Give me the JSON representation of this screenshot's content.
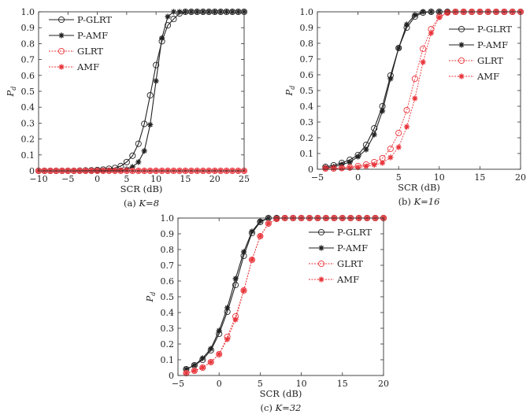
{
  "chart_data": [
    {
      "type": "line",
      "caption": "(a) K=8",
      "caption_prefix": "(a)",
      "caption_k": "K=8",
      "xlabel": "SCR (dB)",
      "ylabel": "P_d",
      "xlim": [
        -10,
        25
      ],
      "ylim": [
        0,
        1
      ],
      "xticks": [
        -10,
        -5,
        0,
        5,
        10,
        15,
        20,
        25
      ],
      "yticks": [
        0,
        0.1,
        0.2,
        0.3,
        0.4,
        0.5,
        0.6,
        0.7,
        0.8,
        0.9,
        1.0
      ],
      "ytick_labels": [
        "0",
        "0.1",
        "0.2",
        "0.3",
        "0.4",
        "0.5",
        "0.6",
        "0.7",
        "0.8",
        "0.9",
        "1.0"
      ],
      "legend": "top-left",
      "x": [
        -10,
        -9,
        -8,
        -7,
        -6,
        -5,
        -4,
        -3,
        -2,
        -1,
        0,
        1,
        2,
        3,
        4,
        5,
        6,
        7,
        8,
        9,
        10,
        11,
        12,
        13,
        14,
        15,
        16,
        17,
        18,
        19,
        20,
        21,
        22,
        23,
        24,
        25
      ],
      "series": [
        {
          "name": "P-GLRT",
          "color": "#222222",
          "marker": "circle",
          "dash": false,
          "values": [
            0,
            0,
            0,
            0,
            0,
            0,
            0,
            0.001,
            0.002,
            0.003,
            0.005,
            0.008,
            0.013,
            0.018,
            0.03,
            0.055,
            0.095,
            0.17,
            0.295,
            0.475,
            0.665,
            0.815,
            0.915,
            0.955,
            0.99,
            1,
            1,
            1,
            1,
            1,
            1,
            1,
            1,
            1,
            1,
            1
          ]
        },
        {
          "name": "P-AMF",
          "color": "#222222",
          "marker": "star",
          "dash": false,
          "values": [
            0,
            0,
            0,
            0,
            0,
            0,
            0,
            0,
            0.001,
            0.001,
            0.002,
            0.002,
            0.003,
            0.003,
            0.004,
            0.01,
            0.025,
            0.055,
            0.125,
            0.29,
            0.565,
            0.835,
            0.97,
            1,
            1,
            1,
            1,
            1,
            1,
            1,
            1,
            1,
            1,
            1,
            1,
            1
          ]
        },
        {
          "name": "GLRT",
          "color": "#e8343a",
          "marker": "circle",
          "dash": true,
          "values": [
            0,
            0,
            0,
            0,
            0,
            0,
            0,
            0,
            0,
            0,
            0,
            0,
            0,
            0,
            0,
            0,
            0,
            0,
            0,
            0,
            0,
            0,
            0,
            0,
            0,
            0,
            0,
            0,
            0,
            0,
            0,
            0,
            0,
            0,
            0,
            0
          ]
        },
        {
          "name": "AMF",
          "color": "#e8343a",
          "marker": "star",
          "dash": true,
          "values": [
            0,
            0,
            0,
            0,
            0,
            0,
            0,
            0,
            0,
            0,
            0,
            0,
            0,
            0,
            0,
            0,
            0,
            0,
            0,
            0,
            0,
            0,
            0,
            0,
            0,
            0,
            0,
            0,
            0,
            0,
            0,
            0,
            0,
            0,
            0,
            0
          ]
        }
      ]
    },
    {
      "type": "line",
      "caption": "(b) K=16",
      "caption_prefix": "(b)",
      "caption_k": "K=16",
      "xlabel": "SCR (dB)",
      "ylabel": "P_d",
      "xlim": [
        -5,
        20
      ],
      "ylim": [
        0,
        1
      ],
      "xticks": [
        -5,
        0,
        5,
        10,
        15,
        20
      ],
      "yticks": [
        0,
        0.1,
        0.2,
        0.3,
        0.4,
        0.5,
        0.6,
        0.7,
        0.8,
        0.9,
        1.0
      ],
      "ytick_labels": [
        "0",
        "0.1",
        "0.2",
        "0.3",
        "0.4",
        "0.5",
        "0.6",
        "0.7",
        "0.8",
        "0.9",
        "1.0"
      ],
      "legend": "right",
      "x": [
        -4,
        -3,
        -2,
        -1,
        0,
        1,
        2,
        3,
        4,
        5,
        6,
        7,
        8,
        9,
        10,
        11,
        12,
        13,
        14,
        15,
        16,
        17,
        18,
        19,
        20
      ],
      "series": [
        {
          "name": "P-GLRT",
          "color": "#222222",
          "marker": "circle",
          "dash": false,
          "values": [
            0.015,
            0.025,
            0.04,
            0.06,
            0.09,
            0.155,
            0.26,
            0.4,
            0.595,
            0.77,
            0.9,
            0.97,
            0.995,
            1,
            1,
            1,
            1,
            1,
            1,
            1,
            1,
            1,
            1,
            1,
            1
          ]
        },
        {
          "name": "P-AMF",
          "color": "#222222",
          "marker": "star",
          "dash": false,
          "values": [
            0.01,
            0.015,
            0.03,
            0.045,
            0.08,
            0.125,
            0.22,
            0.37,
            0.575,
            0.77,
            0.92,
            0.98,
            1,
            1,
            1,
            1,
            1,
            1,
            1,
            1,
            1,
            1,
            1,
            1,
            1
          ]
        },
        {
          "name": "GLRT",
          "color": "#e8343a",
          "marker": "circle",
          "dash": true,
          "values": [
            0.005,
            0.005,
            0.008,
            0.012,
            0.02,
            0.03,
            0.045,
            0.07,
            0.13,
            0.23,
            0.375,
            0.575,
            0.765,
            0.89,
            0.97,
            0.995,
            1,
            1,
            1,
            1,
            1,
            1,
            1,
            1,
            1
          ]
        },
        {
          "name": "AMF",
          "color": "#e8343a",
          "marker": "star",
          "dash": true,
          "values": [
            0.003,
            0.004,
            0.005,
            0.008,
            0.012,
            0.018,
            0.028,
            0.04,
            0.075,
            0.14,
            0.27,
            0.45,
            0.68,
            0.865,
            0.965,
            0.995,
            1,
            1,
            1,
            1,
            1,
            1,
            1,
            1,
            1
          ]
        }
      ]
    },
    {
      "type": "line",
      "caption": "(c) K=32",
      "caption_prefix": "(c)",
      "caption_k": "K=32",
      "xlabel": "SCR (dB)",
      "ylabel": "P_d",
      "xlim": [
        -5,
        20
      ],
      "ylim": [
        0,
        1
      ],
      "xticks": [
        -5,
        0,
        5,
        10,
        15,
        20
      ],
      "yticks": [
        0,
        0.1,
        0.2,
        0.3,
        0.4,
        0.5,
        0.6,
        0.7,
        0.8,
        0.9,
        1.0
      ],
      "ytick_labels": [
        "0",
        "0.1",
        "0.2",
        "0.3",
        "0.4",
        "0.5",
        "0.6",
        "0.7",
        "0.8",
        "0.9",
        "1.0"
      ],
      "legend": "top-right",
      "x": [
        -4,
        -3,
        -2,
        -1,
        0,
        1,
        2,
        3,
        4,
        5,
        6,
        7,
        8,
        9,
        10,
        11,
        12,
        13,
        14,
        15,
        16,
        17,
        18,
        19,
        20
      ],
      "series": [
        {
          "name": "P-GLRT",
          "color": "#222222",
          "marker": "circle",
          "dash": false,
          "values": [
            0.04,
            0.065,
            0.1,
            0.16,
            0.265,
            0.405,
            0.575,
            0.76,
            0.905,
            0.975,
            1,
            1,
            1,
            1,
            1,
            1,
            1,
            1,
            1,
            1,
            1,
            1,
            1,
            1,
            1
          ]
        },
        {
          "name": "P-AMF",
          "color": "#222222",
          "marker": "star",
          "dash": false,
          "values": [
            0.04,
            0.065,
            0.11,
            0.17,
            0.285,
            0.43,
            0.615,
            0.785,
            0.915,
            0.98,
            1,
            1,
            1,
            1,
            1,
            1,
            1,
            1,
            1,
            1,
            1,
            1,
            1,
            1,
            1
          ]
        },
        {
          "name": "GLRT",
          "color": "#e8343a",
          "marker": "circle",
          "dash": true,
          "values": [
            0.015,
            0.03,
            0.05,
            0.085,
            0.135,
            0.245,
            0.375,
            0.54,
            0.735,
            0.885,
            0.965,
            0.995,
            1,
            1,
            1,
            1,
            1,
            1,
            1,
            1,
            1,
            1,
            1,
            1,
            1
          ]
        },
        {
          "name": "AMF",
          "color": "#e8343a",
          "marker": "star",
          "dash": true,
          "values": [
            0.015,
            0.03,
            0.05,
            0.085,
            0.135,
            0.23,
            0.355,
            0.54,
            0.735,
            0.885,
            0.965,
            0.995,
            1,
            1,
            1,
            1,
            1,
            1,
            1,
            1,
            1,
            1,
            1,
            1,
            1
          ]
        }
      ]
    }
  ]
}
